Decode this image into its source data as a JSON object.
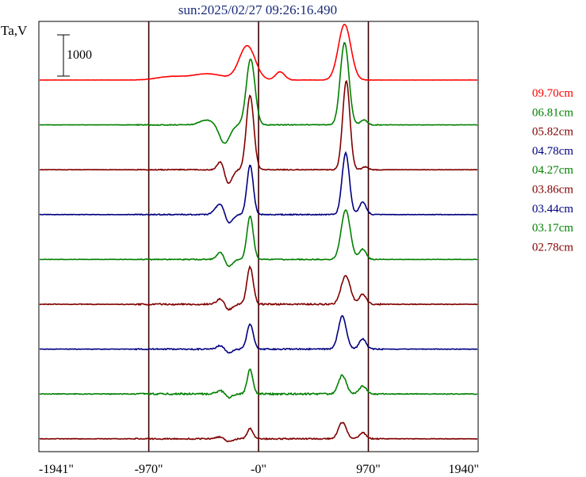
{
  "chart_data": {
    "type": "line",
    "title": "sun:2025/02/27 09:26:16.490",
    "ylabel": "Ta,V",
    "scale_bar_label": "1000",
    "scale_bar_value": 1000,
    "x_ticks": [
      {
        "label": "-1941\"",
        "value": -1941
      },
      {
        "label": "-970\"",
        "value": -970
      },
      {
        "label": "-0\"",
        "value": 0
      },
      {
        "label": "970\"",
        "value": 970
      },
      {
        "label": "1940\"",
        "value": 1940
      }
    ],
    "xlim": [
      -1941,
      1940
    ],
    "vlines": [
      -970,
      0,
      970
    ],
    "grid": false,
    "legend_position": "right",
    "series": [
      {
        "name": "09.70cm",
        "color": "#ff0000",
        "noise": 6,
        "peaks": [
          [
            -100,
            830,
            70
          ],
          [
            760,
            1350,
            55
          ],
          [
            190,
            200,
            40
          ],
          [
            -450,
            150,
            140
          ],
          [
            -780,
            80,
            120
          ]
        ]
      },
      {
        "name": "06.81cm",
        "color": "#008000",
        "noise": 14,
        "peaks": [
          [
            -70,
            1600,
            38
          ],
          [
            760,
            2000,
            38
          ],
          [
            -300,
            -450,
            45
          ],
          [
            -460,
            120,
            60
          ],
          [
            930,
            120,
            30
          ]
        ]
      },
      {
        "name": "05.82cm",
        "color": "#800000",
        "noise": 16,
        "peaks": [
          [
            -75,
            1800,
            33
          ],
          [
            775,
            2150,
            32
          ],
          [
            -330,
            250,
            30
          ],
          [
            -270,
            -350,
            35
          ],
          [
            940,
            70,
            25
          ]
        ]
      },
      {
        "name": "04.78cm",
        "color": "#000080",
        "noise": 18,
        "peaks": [
          [
            -75,
            1200,
            28
          ],
          [
            770,
            1500,
            32
          ],
          [
            -330,
            300,
            45
          ],
          [
            -270,
            -300,
            35
          ],
          [
            920,
            300,
            30
          ]
        ]
      },
      {
        "name": "04.27cm",
        "color": "#008000",
        "noise": 16,
        "peaks": [
          [
            -75,
            1050,
            28
          ],
          [
            770,
            1200,
            40
          ],
          [
            -330,
            200,
            35
          ],
          [
            -270,
            -200,
            35
          ],
          [
            920,
            250,
            30
          ]
        ]
      },
      {
        "name": "03.86cm",
        "color": "#800000",
        "noise": 26,
        "peaks": [
          [
            -75,
            900,
            28
          ],
          [
            770,
            700,
            40
          ],
          [
            -330,
            150,
            35
          ],
          [
            -270,
            -150,
            35
          ],
          [
            920,
            250,
            30
          ]
        ]
      },
      {
        "name": "03.44cm",
        "color": "#000080",
        "noise": 22,
        "peaks": [
          [
            -75,
            600,
            28
          ],
          [
            740,
            800,
            35
          ],
          [
            -330,
            100,
            35
          ],
          [
            -270,
            -100,
            35
          ],
          [
            920,
            250,
            30
          ]
        ]
      },
      {
        "name": "03.17cm",
        "color": "#008000",
        "noise": 30,
        "peaks": [
          [
            -75,
            600,
            25
          ],
          [
            740,
            450,
            35
          ],
          [
            -330,
            100,
            35
          ],
          [
            -270,
            -100,
            35
          ],
          [
            920,
            200,
            30
          ]
        ]
      },
      {
        "name": "02.78cm",
        "color": "#800000",
        "noise": 22,
        "peaks": [
          [
            -75,
            250,
            25
          ],
          [
            740,
            400,
            35
          ],
          [
            -330,
            60,
            35
          ],
          [
            -270,
            -80,
            35
          ],
          [
            920,
            150,
            30
          ]
        ]
      }
    ]
  }
}
